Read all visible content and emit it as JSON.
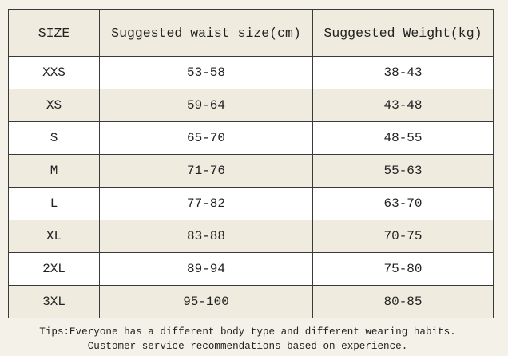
{
  "table": {
    "header": [
      "SIZE",
      "Suggested waist size(cm)",
      "Suggested Weight(kg)"
    ],
    "rows": [
      [
        "XXS",
        "53-58",
        "38-43"
      ],
      [
        "XS",
        "59-64",
        "43-48"
      ],
      [
        "S",
        "65-70",
        "48-55"
      ],
      [
        "M",
        "71-76",
        "55-63"
      ],
      [
        "L",
        "77-82",
        "63-70"
      ],
      [
        "XL",
        "83-88",
        "70-75"
      ],
      [
        "2XL",
        "89-94",
        "75-80"
      ],
      [
        "3XL",
        "95-100",
        "80-85"
      ]
    ]
  },
  "tips": [
    "Tips:Everyone has a different body type and different wearing habits.",
    "Customer service recommendations based on experience."
  ]
}
